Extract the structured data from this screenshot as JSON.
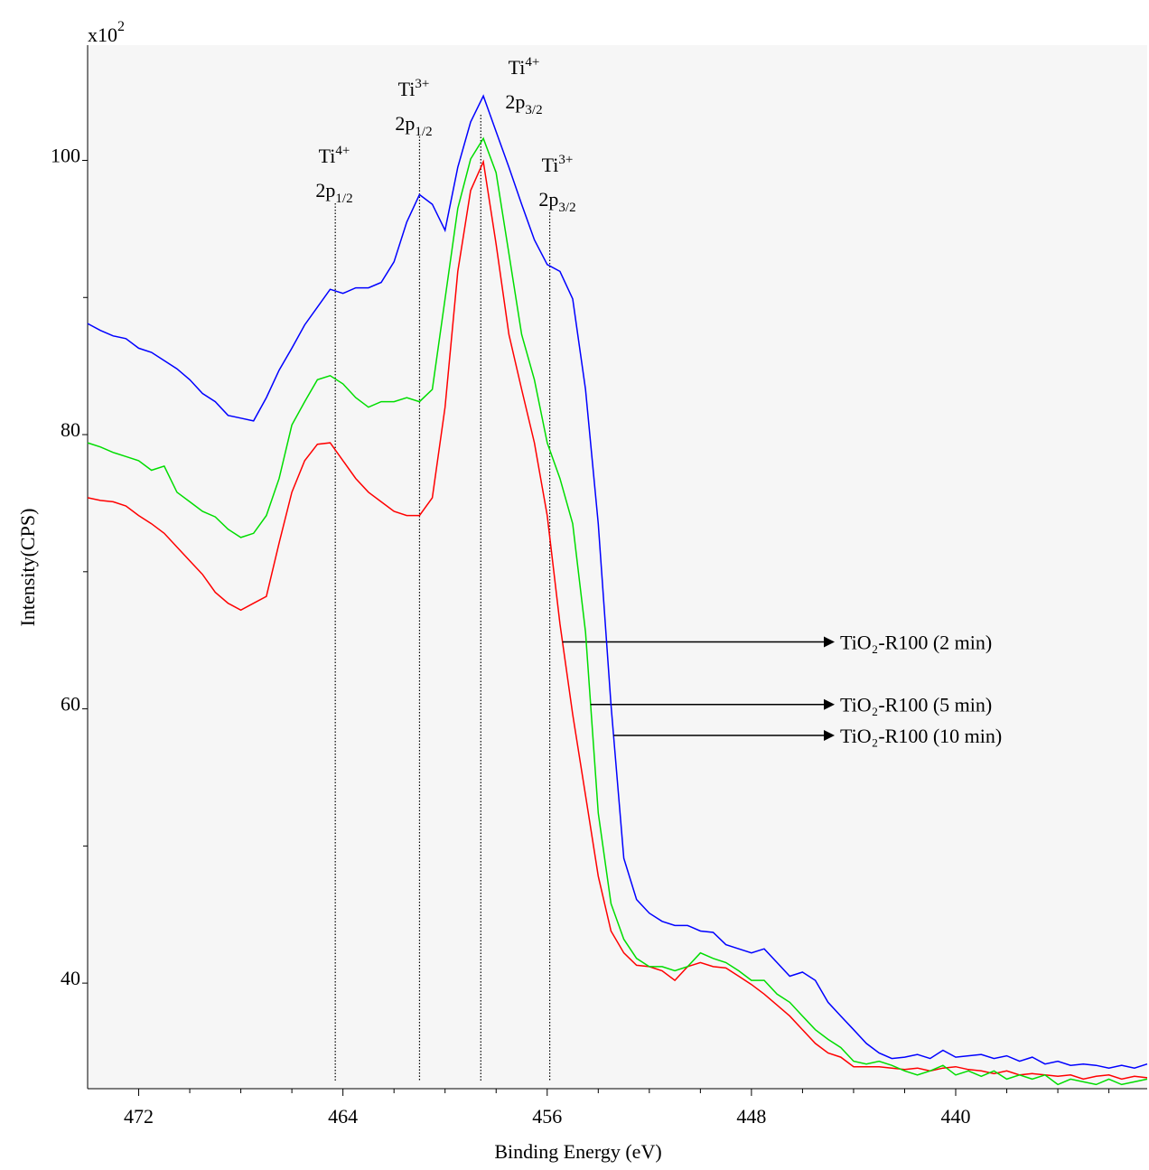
{
  "chart_data": {
    "type": "line",
    "xlabel": "Binding Energy (eV)",
    "ylabel": "Intensity(CPS)",
    "y_multiplier": {
      "base": "x10",
      "exponent": "2"
    },
    "xlim": [
      474,
      432.5
    ],
    "ylim": [
      32.3,
      108.4
    ],
    "xticks": [
      472,
      464,
      456,
      448,
      440
    ],
    "xminorticks": [
      470,
      468,
      466,
      462,
      460,
      458,
      454,
      452,
      450,
      446,
      444,
      442,
      438,
      436,
      434
    ],
    "yticks": [
      40,
      60,
      80,
      100
    ],
    "yminorticks": [
      50,
      70,
      90
    ],
    "x": [
      474,
      473.5,
      473,
      472.5,
      472,
      471.5,
      471,
      470.5,
      470,
      469.5,
      469,
      468.5,
      468,
      467.5,
      467,
      466.5,
      466,
      465.5,
      465,
      464.5,
      464,
      463.5,
      463,
      462.5,
      462,
      461.5,
      461,
      460.5,
      460,
      459.5,
      459,
      458.5,
      458,
      457.5,
      457,
      456.5,
      456,
      455.5,
      455,
      454.5,
      454,
      453.5,
      453,
      452.5,
      452,
      451.5,
      451,
      450.5,
      450,
      449.5,
      449,
      448.5,
      448,
      447.5,
      447,
      446.5,
      446,
      445.5,
      445,
      444.5,
      444,
      443.5,
      443,
      442.5,
      442,
      441.5,
      441,
      440.5,
      440,
      439.5,
      439,
      438.5,
      438,
      437.5,
      437,
      436.5,
      436,
      435.5,
      435,
      434.5,
      434,
      433.5,
      433,
      432.5
    ],
    "series": [
      {
        "name": "TiO₂-R100 (2 min)",
        "color": "#ff0000",
        "arrow_x": 455.4,
        "values": [
          75.4,
          75.2,
          75.1,
          74.8,
          74.1,
          73.5,
          72.8,
          71.8,
          70.8,
          69.8,
          68.5,
          67.7,
          67.2,
          67.7,
          68.2,
          72.1,
          75.8,
          78.1,
          79.3,
          79.4,
          78.1,
          76.8,
          75.8,
          75.1,
          74.4,
          74.1,
          74.1,
          75.4,
          82.0,
          91.9,
          97.8,
          99.9,
          93.9,
          87.3,
          83.3,
          79.4,
          74.1,
          66.2,
          59.6,
          53.7,
          47.8,
          43.8,
          42.2,
          41.3,
          41.2,
          40.9,
          40.2,
          41.2,
          41.5,
          41.2,
          41.1,
          40.5,
          39.9,
          39.2,
          38.4,
          37.6,
          36.6,
          35.6,
          34.9,
          34.6,
          33.9,
          33.9,
          33.9,
          33.8,
          33.7,
          33.8,
          33.6,
          33.8,
          33.9,
          33.7,
          33.6,
          33.4,
          33.6,
          33.3,
          33.4,
          33.3,
          33.2,
          33.3,
          33.0,
          33.2,
          33.3,
          33.0,
          33.2,
          33.1
        ]
      },
      {
        "name": "TiO₂-R100 (5 min)",
        "color": "#00dd00",
        "arrow_x": 454.3,
        "values": [
          79.4,
          79.1,
          78.7,
          78.4,
          78.1,
          77.4,
          77.7,
          75.8,
          75.1,
          74.4,
          74.0,
          73.1,
          72.5,
          72.8,
          74.1,
          76.8,
          80.7,
          82.4,
          84.0,
          84.3,
          83.7,
          82.7,
          82.0,
          82.4,
          82.4,
          82.7,
          82.4,
          83.3,
          89.9,
          96.5,
          100.1,
          101.6,
          99.1,
          93.2,
          87.3,
          84.0,
          79.4,
          76.8,
          73.5,
          65.6,
          52.4,
          45.8,
          43.2,
          41.8,
          41.2,
          41.2,
          40.9,
          41.2,
          42.2,
          41.8,
          41.5,
          40.9,
          40.2,
          40.2,
          39.2,
          38.6,
          37.6,
          36.6,
          35.9,
          35.3,
          34.3,
          34.1,
          34.3,
          34.0,
          33.6,
          33.3,
          33.6,
          34.0,
          33.3,
          33.6,
          33.2,
          33.6,
          33.0,
          33.3,
          33.0,
          33.3,
          32.6,
          33.0,
          32.8,
          32.6,
          33.0,
          32.6,
          32.8,
          33.0
        ]
      },
      {
        "name": "TiO₂-R100 (10 min)",
        "color": "#0000ff",
        "arrow_x": 453.4,
        "values": [
          88.1,
          87.6,
          87.2,
          87.0,
          86.3,
          86.0,
          85.4,
          84.8,
          84.0,
          83.0,
          82.4,
          81.4,
          81.2,
          81.0,
          82.7,
          84.7,
          86.3,
          88.0,
          89.3,
          90.6,
          90.3,
          90.7,
          90.7,
          91.1,
          92.6,
          95.5,
          97.5,
          96.8,
          94.9,
          99.5,
          102.8,
          104.7,
          102.1,
          99.5,
          96.8,
          94.2,
          92.4,
          91.9,
          89.9,
          83.3,
          73.5,
          60.3,
          49.1,
          46.1,
          45.1,
          44.5,
          44.2,
          44.2,
          43.8,
          43.7,
          42.8,
          42.5,
          42.2,
          42.5,
          41.5,
          40.5,
          40.8,
          40.2,
          38.6,
          37.6,
          36.6,
          35.6,
          34.9,
          34.5,
          34.6,
          34.8,
          34.5,
          35.1,
          34.6,
          34.7,
          34.8,
          34.5,
          34.7,
          34.3,
          34.6,
          34.1,
          34.3,
          34.0,
          34.1,
          34.0,
          33.8,
          34.0,
          33.8,
          34.1
        ]
      }
    ],
    "peaks": [
      {
        "x": 464.3,
        "element": "Ti",
        "charge": "4+",
        "orbital": "2p",
        "level": "1/2"
      },
      {
        "x": 461.0,
        "element": "Ti",
        "charge": "3+",
        "orbital": "2p",
        "level": "1/2"
      },
      {
        "x": 458.6,
        "element": "Ti",
        "charge": "4+",
        "orbital": "2p",
        "level": "3/2"
      },
      {
        "x": 455.9,
        "element": "Ti",
        "charge": "3+",
        "orbital": "2p",
        "level": "3/2"
      }
    ]
  }
}
